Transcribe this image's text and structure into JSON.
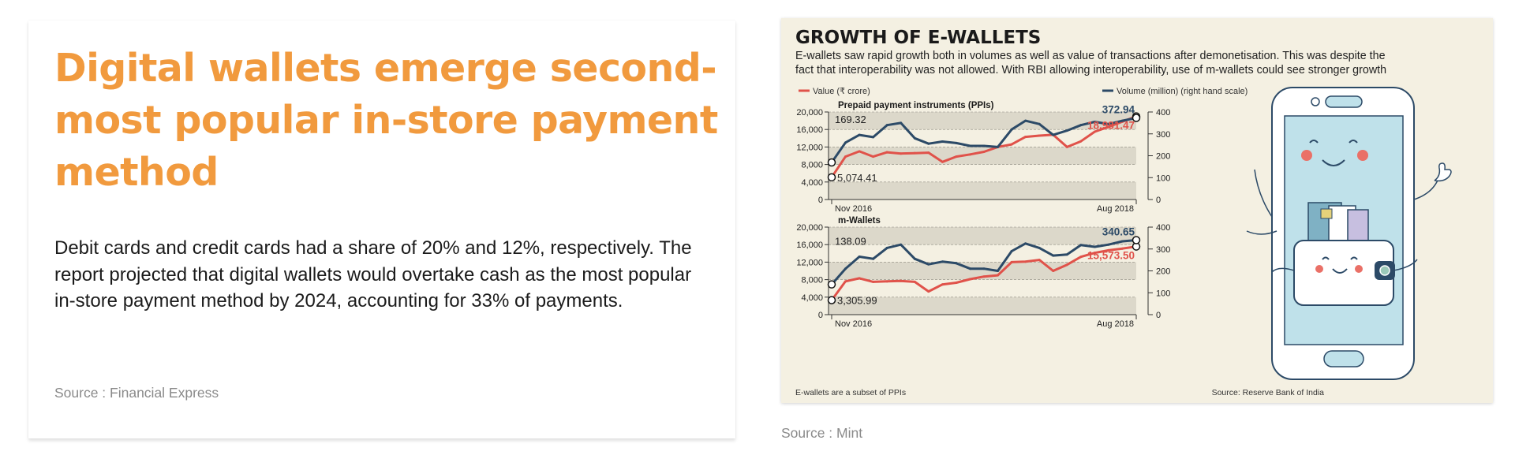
{
  "article": {
    "title": "Digital wallets emerge second-most popular in-store payment method",
    "body": "Debit cards and credit cards had a share of 20% and 12%, respectively. The report projected that digital wallets would overtake cash as the most popular in-store payment method by 2024, accounting for 33% of payments.",
    "source": "Source : Financial Express"
  },
  "image_source": "Source : Mint",
  "colors": {
    "title_orange": "#f19a3e",
    "value_line": "#e0524a",
    "volume_line": "#2c4a67",
    "panel_bg": "#f4f0e2",
    "band": "#dcd8ca",
    "phone_blue": "#bfe1ea"
  },
  "chart_data": {
    "type": "line",
    "title": "GROWTH OF E-WALLETS",
    "subtitle_line1": "E-wallets saw rapid growth both in volumes as well as value of transactions after demonetisation. This was despite the",
    "subtitle_line2": "fact that interoperability was not allowed. With RBI allowing interoperability, use of m-wallets could see stronger growth",
    "legend": [
      {
        "name": "Value (₹ crore)",
        "color": "#e0524a",
        "position": "top-left"
      },
      {
        "name": "Volume (million) (right hand scale)",
        "color": "#2c4a67",
        "position": "top-right"
      }
    ],
    "footnote": "E-wallets are a subset of PPIs",
    "source": "Source: Reserve Bank of India",
    "panels": [
      {
        "title": "Prepaid payment instruments (PPIs)",
        "x_start_label": "Nov 2016",
        "x_end_label": "Aug 2018",
        "left_ticks": [
          "0",
          "4,000",
          "8,000",
          "12,000",
          "16,000",
          "20,000"
        ],
        "right_ticks": [
          "0",
          "100",
          "200",
          "300",
          "400"
        ],
        "ylim_left": [
          0,
          20000
        ],
        "ylim_right": [
          0,
          400
        ],
        "series": [
          {
            "name": "Value (₹ crore)",
            "axis": "left",
            "values": [
              5074.41,
              9800,
              11000,
              9800,
              10800,
              10500,
              10600,
              10700,
              8600,
              9800,
              10300,
              10900,
              12000,
              12600,
              14300,
              14600,
              14800,
              12000,
              13300,
              15500,
              16600,
              17800,
              18981.47
            ]
          },
          {
            "name": "Volume (million) (right hand scale)",
            "axis": "right",
            "values": [
              169.32,
              260,
              295,
              285,
              340,
              350,
              280,
              255,
              265,
              258,
              245,
              245,
              240,
              320,
              360,
              345,
              295,
              315,
              340,
              355,
              345,
              360,
              372.94
            ]
          }
        ],
        "start_labels": {
          "value": "5,074.41",
          "volume": "169.32"
        },
        "end_labels": {
          "value": "18,981.47",
          "volume": "372.94"
        }
      },
      {
        "title": "m-Wallets",
        "x_start_label": "Nov 2016",
        "x_end_label": "Aug 2018",
        "left_ticks": [
          "0",
          "4,000",
          "8,000",
          "12,000",
          "16,000",
          "20,000"
        ],
        "right_ticks": [
          "0",
          "100",
          "200",
          "300",
          "400"
        ],
        "ylim_left": [
          0,
          20000
        ],
        "ylim_right": [
          0,
          400
        ],
        "series": [
          {
            "name": "Value (₹ crore)",
            "axis": "left",
            "values": [
              3305.99,
              7600,
              8300,
              7500,
              7600,
              7700,
              7500,
              5300,
              6900,
              7300,
              8100,
              8700,
              9000,
              12000,
              12100,
              12500,
              10000,
              11400,
              13200,
              14100,
              14700,
              15100,
              15573.5
            ]
          },
          {
            "name": "Volume (million) (right hand scale)",
            "axis": "right",
            "values": [
              138.09,
              210,
              265,
              255,
              305,
              320,
              255,
              230,
              242,
              235,
              210,
              210,
              200,
              290,
              325,
              305,
              270,
              275,
              318,
              310,
              320,
              335,
              340.65
            ]
          }
        ],
        "start_labels": {
          "value": "3,305.99",
          "volume": "138.09"
        },
        "end_labels": {
          "value": "15,573.50",
          "volume": "340.65"
        }
      }
    ]
  }
}
